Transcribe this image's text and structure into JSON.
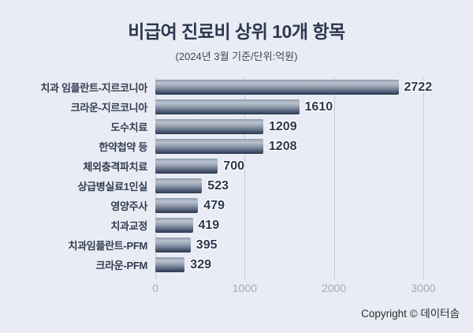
{
  "page": {
    "background": "#e9ecf4"
  },
  "header": {
    "title": "비급여 진료비 상위 10개 항목",
    "subtitle": "(2024년 3월 기준/단위:억원)"
  },
  "footer": {
    "copyright": "Copyright © 데이터솜"
  },
  "chart_data": {
    "type": "bar",
    "orientation": "horizontal",
    "title": "비급여 진료비 상위 10개 항목",
    "subtitle": "(2024년 3월 기준/단위:억원)",
    "categories": [
      "치과 임플란트-지르코니아",
      "크라운-지르코니아",
      "도수치료",
      "한약첩약 등",
      "체외충격파치료",
      "상급병실료1인실",
      "영양주사",
      "치과교정",
      "치과임플란트-PFM",
      "크라운-PFM"
    ],
    "values": [
      2722,
      1610,
      1209,
      1208,
      700,
      523,
      479,
      419,
      395,
      329
    ],
    "xlabel": "",
    "ylabel": "",
    "xlim": [
      0,
      3000
    ],
    "x_ticks": [
      0,
      1000,
      2000,
      3000
    ],
    "grid": true,
    "legend": false,
    "value_labels": true,
    "colors": {
      "background": "#e9ecf4",
      "title": "#2e3950",
      "subtitle": "#3c4659",
      "category_label": "#333d51",
      "value_label": "#2b3750",
      "gridline": "#c5cbd6",
      "tick_label": "#a4acb9",
      "copyright": "#2c2c2c",
      "bar_gradient": [
        "#8f99ab",
        "#b9c2ce",
        "#98a3b3",
        "#6b778d",
        "#46536c",
        "#2b3850"
      ]
    }
  }
}
